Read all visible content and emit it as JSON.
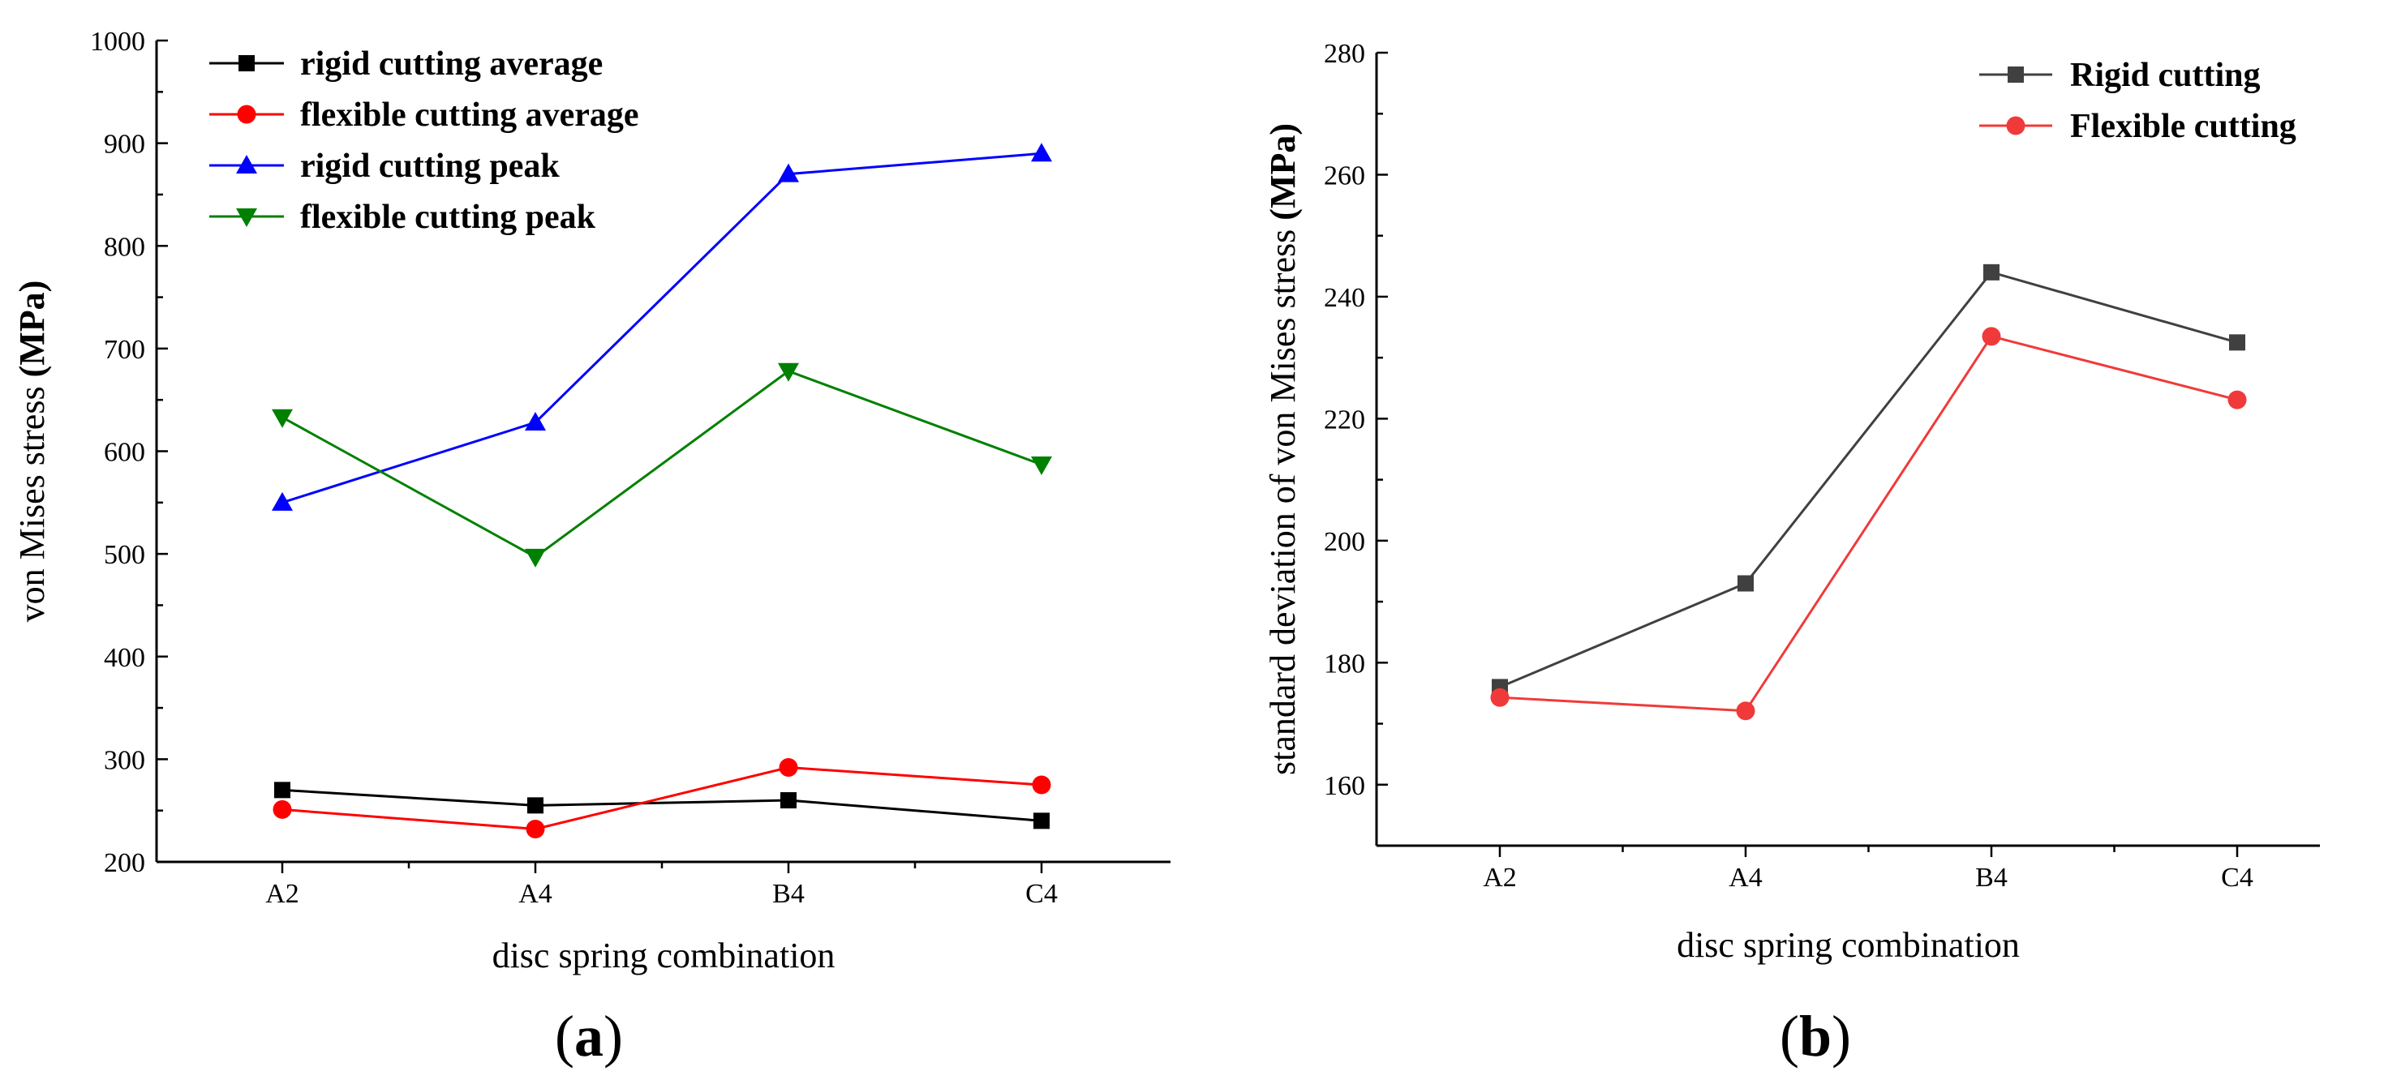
{
  "chart_data": [
    {
      "type": "line",
      "panel_label": "a",
      "xlabel": "disc spring combination",
      "ylabel": "von Mises stress (MPa)",
      "categories": [
        "A2",
        "A4",
        "B4",
        "C4"
      ],
      "ylim": [
        200,
        1000
      ],
      "yticks": [
        200,
        300,
        400,
        500,
        600,
        700,
        800,
        900,
        1000
      ],
      "grid": false,
      "legend_position": "top-left",
      "series": [
        {
          "name": "rigid cutting average",
          "color": "#000000",
          "marker": "square",
          "values": [
            270,
            255,
            260,
            240
          ]
        },
        {
          "name": "flexible cutting average",
          "color": "#ff0000",
          "marker": "circle",
          "values": [
            251,
            232,
            292,
            275
          ]
        },
        {
          "name": "rigid cutting peak",
          "color": "#0000ff",
          "marker": "triangle-up",
          "values": [
            550,
            628,
            870,
            890
          ]
        },
        {
          "name": "flexible cutting peak",
          "color": "#008000",
          "marker": "triangle-down",
          "values": [
            633,
            497,
            678,
            587
          ]
        }
      ]
    },
    {
      "type": "line",
      "panel_label": "b",
      "xlabel": "disc spring combination",
      "ylabel": "standard deviation of von Mises stress (MPa)",
      "categories": [
        "A2",
        "A4",
        "B4",
        "C4"
      ],
      "ylim": [
        150,
        280
      ],
      "yticks": [
        160,
        180,
        200,
        220,
        240,
        260,
        280
      ],
      "grid": false,
      "legend_position": "top-right",
      "series": [
        {
          "name": "Rigid cutting",
          "color": "#404040",
          "marker": "square",
          "values": [
            176,
            193,
            244,
            232.5
          ]
        },
        {
          "name": "Flexible cutting",
          "color": "#f03a3a",
          "marker": "circle",
          "values": [
            174.3,
            172.1,
            233.5,
            223.1
          ]
        }
      ]
    }
  ]
}
